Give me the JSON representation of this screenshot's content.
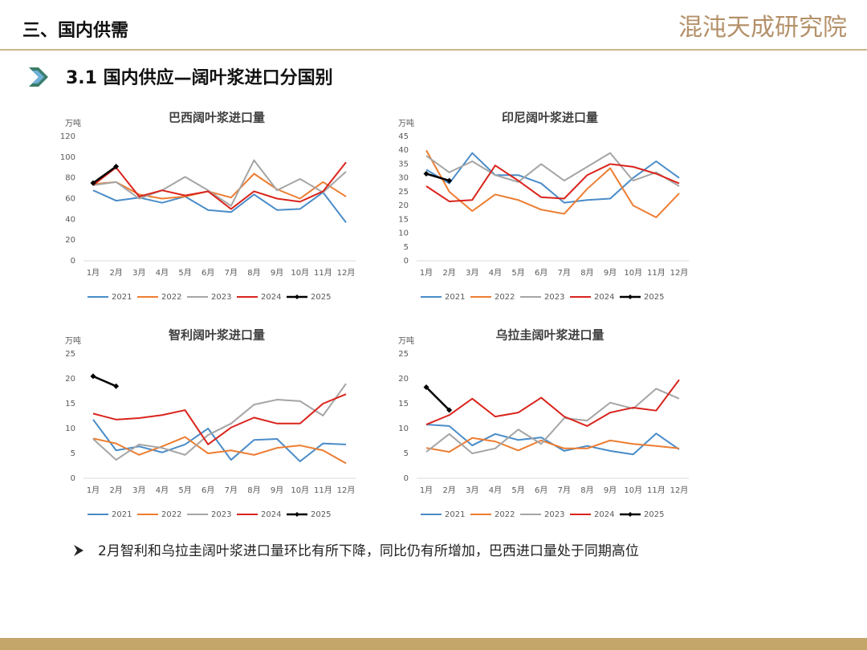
{
  "header": {
    "title": "三、国内供需",
    "logo": "混沌天成研究院"
  },
  "section": {
    "title": "3.1 国内供应—阔叶浆进口分国别"
  },
  "chart_data": [
    {
      "type": "line",
      "title": "巴西阔叶浆进口量",
      "y_label": "万吨",
      "categories": [
        "1月",
        "2月",
        "3月",
        "4月",
        "5月",
        "6月",
        "7月",
        "8月",
        "9月",
        "10月",
        "11月",
        "12月"
      ],
      "ylim": [
        0,
        120
      ],
      "yticks": [
        0,
        20,
        40,
        60,
        80,
        100,
        120
      ],
      "grid": false,
      "legend": "bottom",
      "series": [
        {
          "name": "2021",
          "color": "#4a8cc8",
          "values": [
            68,
            58,
            61,
            56,
            62,
            49,
            47,
            64,
            49,
            50,
            66,
            37
          ]
        },
        {
          "name": "2022",
          "color": "#ed7d31",
          "values": [
            74,
            76,
            64,
            60,
            62,
            67,
            61,
            84,
            69,
            60,
            76,
            62
          ]
        },
        {
          "name": "2023",
          "color": "#a5a5a5",
          "values": [
            73,
            76,
            60,
            68,
            81,
            68,
            53,
            97,
            68,
            79,
            66,
            86
          ]
        },
        {
          "name": "2024",
          "color": "#d9241c",
          "values": [
            73,
            90,
            62,
            68,
            63,
            67,
            50,
            67,
            60,
            57,
            67,
            95
          ]
        },
        {
          "name": "2025",
          "color": "#000000",
          "marker": "diamond",
          "values": [
            75,
            91,
            null,
            null,
            null,
            null,
            null,
            null,
            null,
            null,
            null,
            null
          ]
        }
      ]
    },
    {
      "type": "line",
      "title": "印尼阔叶浆进口量",
      "y_label": "万吨",
      "categories": [
        "1月",
        "2月",
        "3月",
        "4月",
        "5月",
        "6月",
        "7月",
        "8月",
        "9月",
        "10月",
        "11月",
        "12月"
      ],
      "ylim": [
        0,
        45
      ],
      "yticks": [
        0,
        5,
        10,
        15,
        20,
        25,
        30,
        35,
        40,
        45
      ],
      "grid": false,
      "legend": "bottom",
      "series": [
        {
          "name": "2021",
          "color": "#4a8cc8",
          "values": [
            33,
            28,
            39,
            31,
            31,
            28,
            21,
            22,
            22.5,
            30,
            36,
            30
          ]
        },
        {
          "name": "2022",
          "color": "#ed7d31",
          "values": [
            40,
            25,
            18,
            24,
            22,
            18.5,
            17,
            26,
            33.5,
            20,
            15.7,
            24.4
          ]
        },
        {
          "name": "2023",
          "color": "#a5a5a5",
          "values": [
            38,
            32,
            36,
            31,
            28.5,
            35,
            29,
            34,
            39,
            29,
            32,
            27
          ]
        },
        {
          "name": "2024",
          "color": "#d9241c",
          "values": [
            27,
            21.5,
            22,
            34.5,
            29,
            23,
            22.5,
            31,
            35,
            34,
            31.5,
            28
          ]
        },
        {
          "name": "2025",
          "color": "#000000",
          "marker": "diamond",
          "values": [
            31.5,
            29,
            null,
            null,
            null,
            null,
            null,
            null,
            null,
            null,
            null,
            null
          ]
        }
      ]
    },
    {
      "type": "line",
      "title": "智利阔叶浆进口量",
      "y_label": "万吨",
      "categories": [
        "1月",
        "2月",
        "3月",
        "4月",
        "5月",
        "6月",
        "7月",
        "8月",
        "9月",
        "10月",
        "11月",
        "12月"
      ],
      "ylim": [
        0,
        25
      ],
      "yticks": [
        0,
        5,
        10,
        15,
        20,
        25
      ],
      "grid": false,
      "legend": "bottom",
      "series": [
        {
          "name": "2021",
          "color": "#4a8cc8",
          "values": [
            11.8,
            5.6,
            6.4,
            5.2,
            6.8,
            10,
            3.7,
            7.7,
            7.9,
            3.4,
            7,
            6.8
          ]
        },
        {
          "name": "2022",
          "color": "#ed7d31",
          "values": [
            8,
            7,
            4.7,
            6.4,
            8.3,
            5,
            5.6,
            4.7,
            6.1,
            6.6,
            5.6,
            3
          ]
        },
        {
          "name": "2023",
          "color": "#a5a5a5",
          "values": [
            7.9,
            3.7,
            6.8,
            6.1,
            4.7,
            8.7,
            11,
            14.8,
            15.8,
            15.5,
            12.6,
            19
          ]
        },
        {
          "name": "2024",
          "color": "#d9241c",
          "values": [
            13,
            11.8,
            12.1,
            12.7,
            13.7,
            6.8,
            10.2,
            12.2,
            11,
            11,
            15,
            16.9
          ]
        },
        {
          "name": "2025",
          "color": "#000000",
          "marker": "diamond",
          "values": [
            20.5,
            18.5,
            null,
            null,
            null,
            null,
            null,
            null,
            null,
            null,
            null,
            null
          ]
        }
      ]
    },
    {
      "type": "line",
      "title": "乌拉圭阔叶浆进口量",
      "y_label": "万吨",
      "categories": [
        "1月",
        "2月",
        "3月",
        "4月",
        "5月",
        "6月",
        "7月",
        "8月",
        "9月",
        "10月",
        "11月",
        "12月"
      ],
      "ylim": [
        0,
        25
      ],
      "yticks": [
        0,
        5,
        10,
        15,
        20,
        25
      ],
      "grid": false,
      "legend": "bottom",
      "series": [
        {
          "name": "2021",
          "color": "#4a8cc8",
          "values": [
            10.8,
            10.5,
            6.6,
            8.9,
            7.7,
            8.2,
            5.5,
            6.5,
            5.5,
            4.8,
            9,
            5.8
          ]
        },
        {
          "name": "2022",
          "color": "#ed7d31",
          "values": [
            6.1,
            5.3,
            8.1,
            7.4,
            5.6,
            7.6,
            6,
            6,
            7.6,
            6.9,
            6.5,
            6
          ]
        },
        {
          "name": "2023",
          "color": "#a5a5a5",
          "values": [
            5.3,
            8.9,
            5,
            6,
            9.8,
            6.9,
            12.1,
            11.6,
            15.2,
            14,
            18,
            16
          ]
        },
        {
          "name": "2024",
          "color": "#d9241c",
          "values": [
            10.8,
            12.7,
            16,
            12.4,
            13.2,
            16.2,
            12.4,
            10.5,
            13.2,
            14.2,
            13.6,
            19.8
          ]
        },
        {
          "name": "2025",
          "color": "#000000",
          "marker": "diamond",
          "values": [
            18.3,
            13.7,
            null,
            null,
            null,
            null,
            null,
            null,
            null,
            null,
            null,
            null
          ]
        }
      ]
    }
  ],
  "note": "2月智利和乌拉圭阔叶浆进口量环比有所下降，同比仍有所增加，巴西进口量处于同期高位"
}
